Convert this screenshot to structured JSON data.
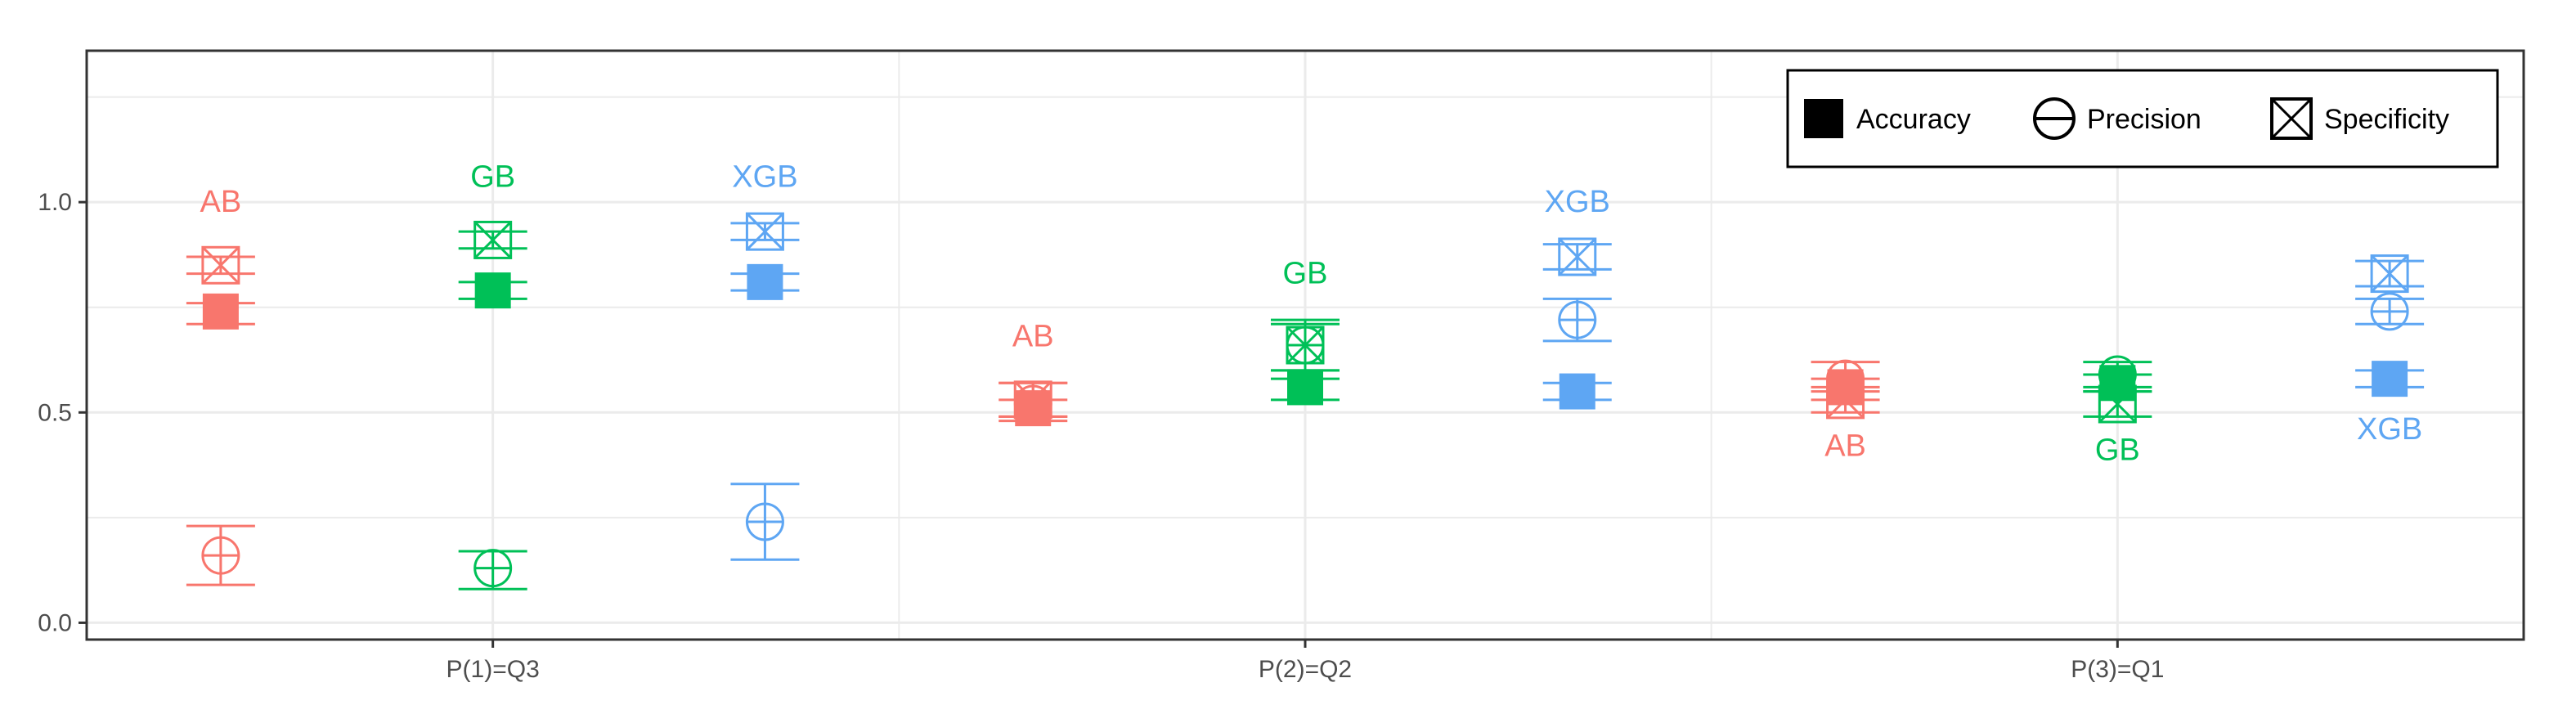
{
  "chart_data": {
    "type": "scatter",
    "title": "",
    "xlabel": "",
    "ylabel": "",
    "categories": [
      "P(1)=Q3",
      "P(2)=Q2",
      "P(3)=Q1"
    ],
    "ylim": [
      -0.04,
      1.36
    ],
    "yticks": [
      0.0,
      0.5,
      1.0
    ],
    "ytick_labels": [
      "0.0",
      "0.5",
      "1.0"
    ],
    "grid": true,
    "legend_position": "top-right",
    "legend": [
      {
        "label": "Accuracy",
        "shape": "filled-square"
      },
      {
        "label": "Precision",
        "shape": "circle-minus"
      },
      {
        "label": "Specificity",
        "shape": "square-cross"
      }
    ],
    "models": [
      {
        "name": "AB",
        "color": "#F8766D"
      },
      {
        "name": "GB",
        "color": "#00C057"
      },
      {
        "name": "XGB",
        "color": "#5EA6F3"
      }
    ],
    "series": [
      {
        "category": "P(1)=Q3",
        "model": "AB",
        "accuracy": {
          "value": 0.74,
          "low": 0.71,
          "high": 0.76
        },
        "precision": {
          "value": 0.16,
          "low": 0.09,
          "high": 0.23
        },
        "specificity": {
          "value": 0.85,
          "low": 0.83,
          "high": 0.87
        },
        "label_value": 1.0
      },
      {
        "category": "P(1)=Q3",
        "model": "GB",
        "accuracy": {
          "value": 0.79,
          "low": 0.77,
          "high": 0.81
        },
        "precision": {
          "value": 0.13,
          "low": 0.08,
          "high": 0.17
        },
        "specificity": {
          "value": 0.91,
          "low": 0.89,
          "high": 0.93
        },
        "label_value": 1.06
      },
      {
        "category": "P(1)=Q3",
        "model": "XGB",
        "accuracy": {
          "value": 0.81,
          "low": 0.79,
          "high": 0.83
        },
        "precision": {
          "value": 0.24,
          "low": 0.15,
          "high": 0.33
        },
        "specificity": {
          "value": 0.93,
          "low": 0.91,
          "high": 0.95
        },
        "label_value": 1.06
      },
      {
        "category": "P(2)=Q2",
        "model": "AB",
        "accuracy": {
          "value": 0.51,
          "low": 0.49,
          "high": 0.53
        },
        "precision": {
          "value": 0.52,
          "low": 0.48,
          "high": 0.57
        },
        "specificity": {
          "value": 0.53,
          "low": 0.49,
          "high": 0.57
        },
        "label_value": 0.68
      },
      {
        "category": "P(2)=Q2",
        "model": "GB",
        "accuracy": {
          "value": 0.56,
          "low": 0.53,
          "high": 0.58
        },
        "precision": {
          "value": 0.66,
          "low": 0.6,
          "high": 0.72
        },
        "specificity": {
          "value": 0.66,
          "low": 0.6,
          "high": 0.71
        },
        "label_value": 0.83
      },
      {
        "category": "P(2)=Q2",
        "model": "XGB",
        "accuracy": {
          "value": 0.55,
          "low": 0.53,
          "high": 0.57
        },
        "precision": {
          "value": 0.72,
          "low": 0.67,
          "high": 0.77
        },
        "specificity": {
          "value": 0.87,
          "low": 0.84,
          "high": 0.9
        },
        "label_value": 1.0
      },
      {
        "category": "P(3)=Q1",
        "model": "AB",
        "accuracy": {
          "value": 0.56,
          "low": 0.53,
          "high": 0.58
        },
        "precision": {
          "value": 0.58,
          "low": 0.55,
          "high": 0.62
        },
        "specificity": {
          "value": 0.53,
          "low": 0.5,
          "high": 0.56
        },
        "label_value": 0.42
      },
      {
        "category": "P(3)=Q1",
        "model": "GB",
        "accuracy": {
          "value": 0.57,
          "low": 0.55,
          "high": 0.59
        },
        "precision": {
          "value": 0.59,
          "low": 0.55,
          "high": 0.62
        },
        "specificity": {
          "value": 0.52,
          "low": 0.49,
          "high": 0.56
        },
        "label_value": 0.41
      },
      {
        "category": "P(3)=Q1",
        "model": "XGB",
        "accuracy": {
          "value": 0.58,
          "low": 0.56,
          "high": 0.6
        },
        "precision": {
          "value": 0.74,
          "low": 0.71,
          "high": 0.77
        },
        "specificity": {
          "value": 0.83,
          "low": 0.8,
          "high": 0.86
        },
        "label_value": 0.46
      }
    ]
  }
}
